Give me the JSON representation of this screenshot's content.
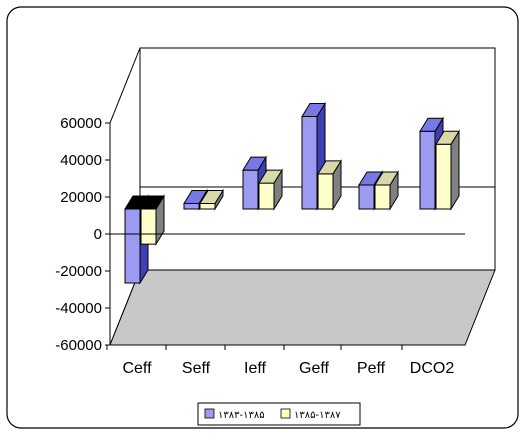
{
  "chart_data": {
    "type": "bar",
    "title": "",
    "xlabel": "",
    "ylabel": "",
    "categories": [
      "Ceff",
      "Seff",
      "Ieff",
      "Geff",
      "Peff",
      "DCO2"
    ],
    "series": [
      {
        "name": "۱۳۸۳-۱۳۸۵",
        "values": [
          -40000,
          3000,
          21000,
          50000,
          13000,
          42000
        ]
      },
      {
        "name": "۱۳۸۵-۱۳۸۷",
        "values": [
          -19000,
          3000,
          14000,
          19000,
          13000,
          35000
        ]
      }
    ],
    "ylim": [
      -60000,
      60000
    ],
    "y_ticks": [
      "60000",
      "40000",
      "20000",
      "0",
      "-20000",
      "-40000",
      "-60000"
    ],
    "y_tick_values": [
      60000,
      40000,
      20000,
      0,
      -20000,
      -40000,
      -60000
    ],
    "grid": false,
    "three_d": true,
    "legend_position": "bottom",
    "colors": {
      "series1_front": "#9b9bf2",
      "series1_top": "#7777e6",
      "series1_side": "#3f3fb4",
      "series2_front": "#ffffcc",
      "series2_top": "#d8d8a8",
      "series2_side": "#808080",
      "floor": "#c8c8c8",
      "back_wall": "#ffffff",
      "axis": "#000000"
    }
  }
}
